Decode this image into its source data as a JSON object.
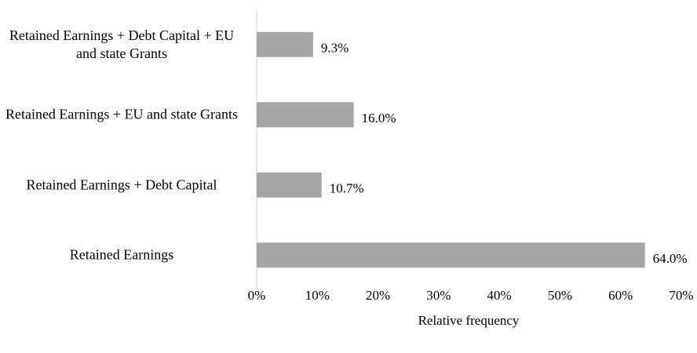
{
  "chart_data": {
    "type": "bar",
    "orientation": "horizontal",
    "categories": [
      "Retained Earnings + Debt Capital + EU and state Grants",
      "Retained Earnings + EU and state Grants",
      "Retained Earnings + Debt Capital",
      "Retained Earnings"
    ],
    "values": [
      9.3,
      16.0,
      10.7,
      64.0
    ],
    "value_labels": [
      "9.3%",
      "16.0%",
      "10.7%",
      "64.0%"
    ],
    "color": "#a6a6a6",
    "xlabel": "Relative frequency",
    "xlim": [
      0,
      70
    ],
    "xticks": [
      {
        "value": 0,
        "label": "0%"
      },
      {
        "value": 10,
        "label": "10%"
      },
      {
        "value": 20,
        "label": "20%"
      },
      {
        "value": 30,
        "label": "30%"
      },
      {
        "value": 40,
        "label": "40%"
      },
      {
        "value": 50,
        "label": "50%"
      },
      {
        "value": 60,
        "label": "60%"
      },
      {
        "value": 70,
        "label": "70%"
      }
    ]
  }
}
